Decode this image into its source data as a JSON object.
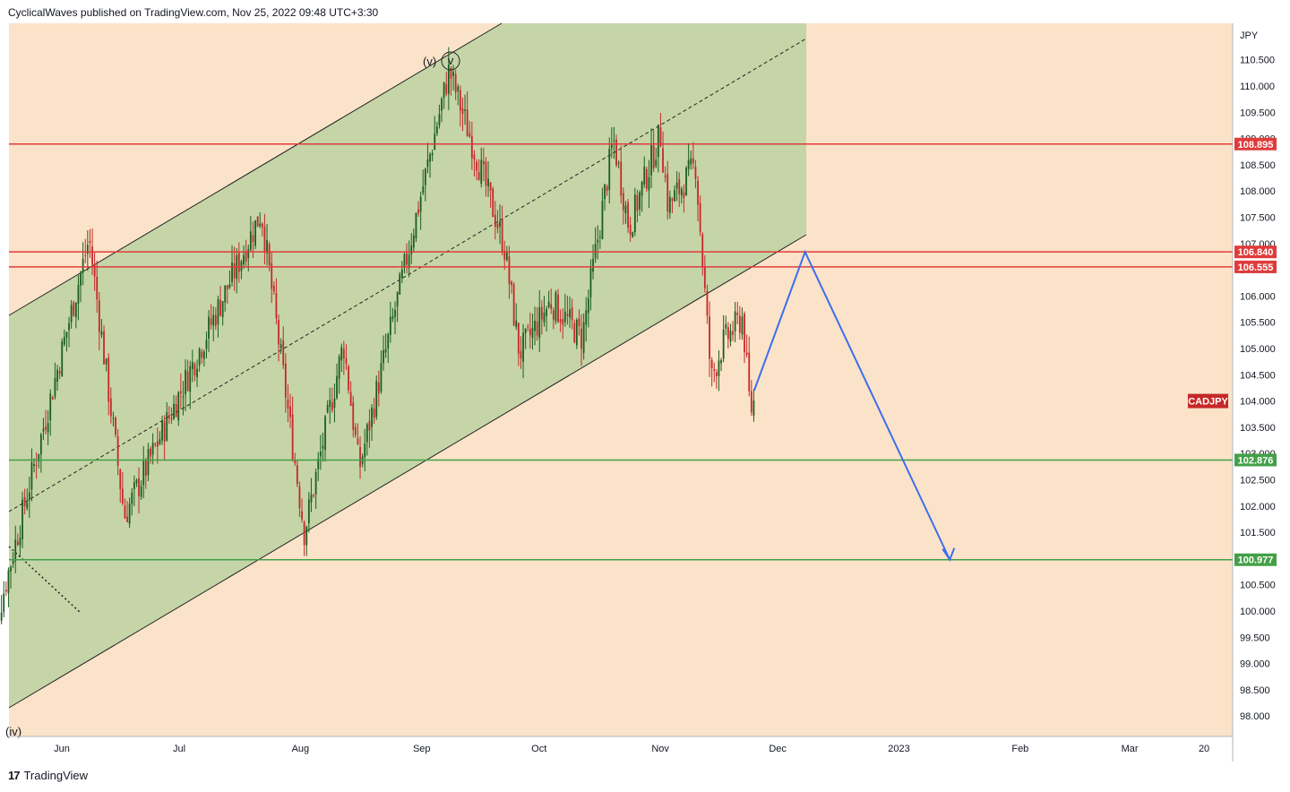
{
  "header": {
    "publish_line": "CyclicalWaves published on TradingView.com, Nov 25, 2022 09:48 UTC+3:30"
  },
  "brand": {
    "logo": "17",
    "name": "TradingView"
  },
  "colors": {
    "background": "#fae3c8",
    "channel_fill": "#c5d5a8",
    "resistance": "#e03b3b",
    "support": "#43a047",
    "projection": "#3d6df2",
    "candle_up": "#1b5e20",
    "candle_down": "#c62828"
  },
  "chart_data": {
    "type": "candlestick",
    "symbol": "CADJPY",
    "currency": "JPY",
    "y_axis": {
      "unit": "JPY",
      "range": [
        97.7,
        111.1
      ],
      "ticks": [
        "98.000",
        "98.500",
        "99.000",
        "99.500",
        "100.000",
        "100.500",
        "101.000",
        "101.500",
        "102.000",
        "102.500",
        "103.000",
        "103.500",
        "104.000",
        "104.500",
        "105.000",
        "105.500",
        "106.000",
        "106.500",
        "107.000",
        "107.500",
        "108.000",
        "108.500",
        "109.000",
        "109.500",
        "110.000",
        "110.500"
      ]
    },
    "x_axis": {
      "ticks": [
        "Jun",
        "Jul",
        "Aug",
        "Sep",
        "Oct",
        "Nov",
        "Dec",
        "2023",
        "Feb",
        "Mar",
        "20"
      ]
    },
    "levels": [
      {
        "name": "resistance-1",
        "value": 108.895,
        "label": "108.895",
        "kind": "resistance"
      },
      {
        "name": "resistance-2",
        "value": 106.84,
        "label": "106.840",
        "kind": "resistance"
      },
      {
        "name": "resistance-3",
        "value": 106.555,
        "label": "106.555",
        "kind": "resistance"
      },
      {
        "name": "support-1",
        "value": 102.876,
        "label": "102.876",
        "kind": "support"
      },
      {
        "name": "support-2",
        "value": 100.977,
        "label": "100.977",
        "kind": "support"
      }
    ],
    "price_badge": "CADJPY",
    "wave_labels": [
      "(v)",
      "v",
      "(iv)"
    ],
    "projection": [
      {
        "date": "2022-11-25",
        "price": 104.2
      },
      {
        "date": "2022-12-08",
        "price": 106.84
      },
      {
        "date": "2023-01-14",
        "price": 100.977
      }
    ],
    "anchors": [
      {
        "date": "2022-05-13",
        "price": 99.1
      },
      {
        "date": "2022-06-08",
        "price": 107.1
      },
      {
        "date": "2022-06-17",
        "price": 101.8
      },
      {
        "date": "2022-07-22",
        "price": 107.6
      },
      {
        "date": "2022-08-02",
        "price": 101.5
      },
      {
        "date": "2022-08-12",
        "price": 105.1
      },
      {
        "date": "2022-08-16",
        "price": 102.7
      },
      {
        "date": "2022-09-08",
        "price": 110.3
      },
      {
        "date": "2022-09-22",
        "price": 107.0
      },
      {
        "date": "2022-09-26",
        "price": 104.9
      },
      {
        "date": "2022-10-04",
        "price": 105.9
      },
      {
        "date": "2022-10-12",
        "price": 105.2
      },
      {
        "date": "2022-10-20",
        "price": 109.0
      },
      {
        "date": "2022-10-24",
        "price": 107.3
      },
      {
        "date": "2022-11-01",
        "price": 109.1
      },
      {
        "date": "2022-11-03",
        "price": 107.7
      },
      {
        "date": "2022-11-10",
        "price": 108.5
      },
      {
        "date": "2022-11-14",
        "price": 104.4
      },
      {
        "date": "2022-11-17",
        "price": 105.1
      },
      {
        "date": "2022-11-22",
        "price": 105.6
      },
      {
        "date": "2022-11-24",
        "price": 103.8
      },
      {
        "date": "2022-11-25",
        "price": 104.0
      }
    ]
  }
}
